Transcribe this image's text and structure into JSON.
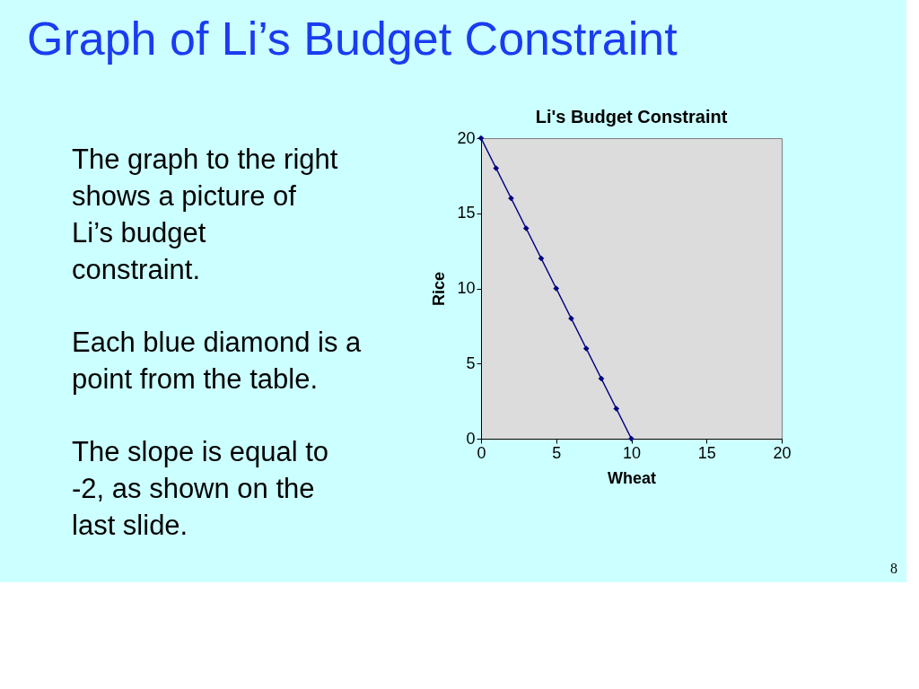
{
  "chart_data": {
    "type": "line",
    "title": "Li's Budget Constraint",
    "xlabel": "Wheat",
    "ylabel": "Rice",
    "x": [
      0,
      1,
      2,
      3,
      4,
      5,
      6,
      7,
      8,
      9,
      10
    ],
    "series": [
      {
        "color": "#000080",
        "values": [
          20,
          18,
          16,
          14,
          12,
          10,
          8,
          6,
          4,
          2,
          0
        ]
      }
    ],
    "xlim": [
      0,
      20
    ],
    "xticks": [
      0,
      5,
      10,
      15,
      20
    ],
    "ylim": [
      0,
      20
    ],
    "yticks": [
      0,
      5,
      10,
      15,
      20
    ],
    "marker": "diamond",
    "line_style": "solid",
    "grid": false,
    "annotations": [
      "Graph of Li’s Budget Constraint",
      "The graph to the right shows a picture of Li’s budget constraint.",
      "Each blue diamond is a point from the table.",
      "The slope is equal to -2, as shown on the last slide.",
      "8"
    ]
  }
}
